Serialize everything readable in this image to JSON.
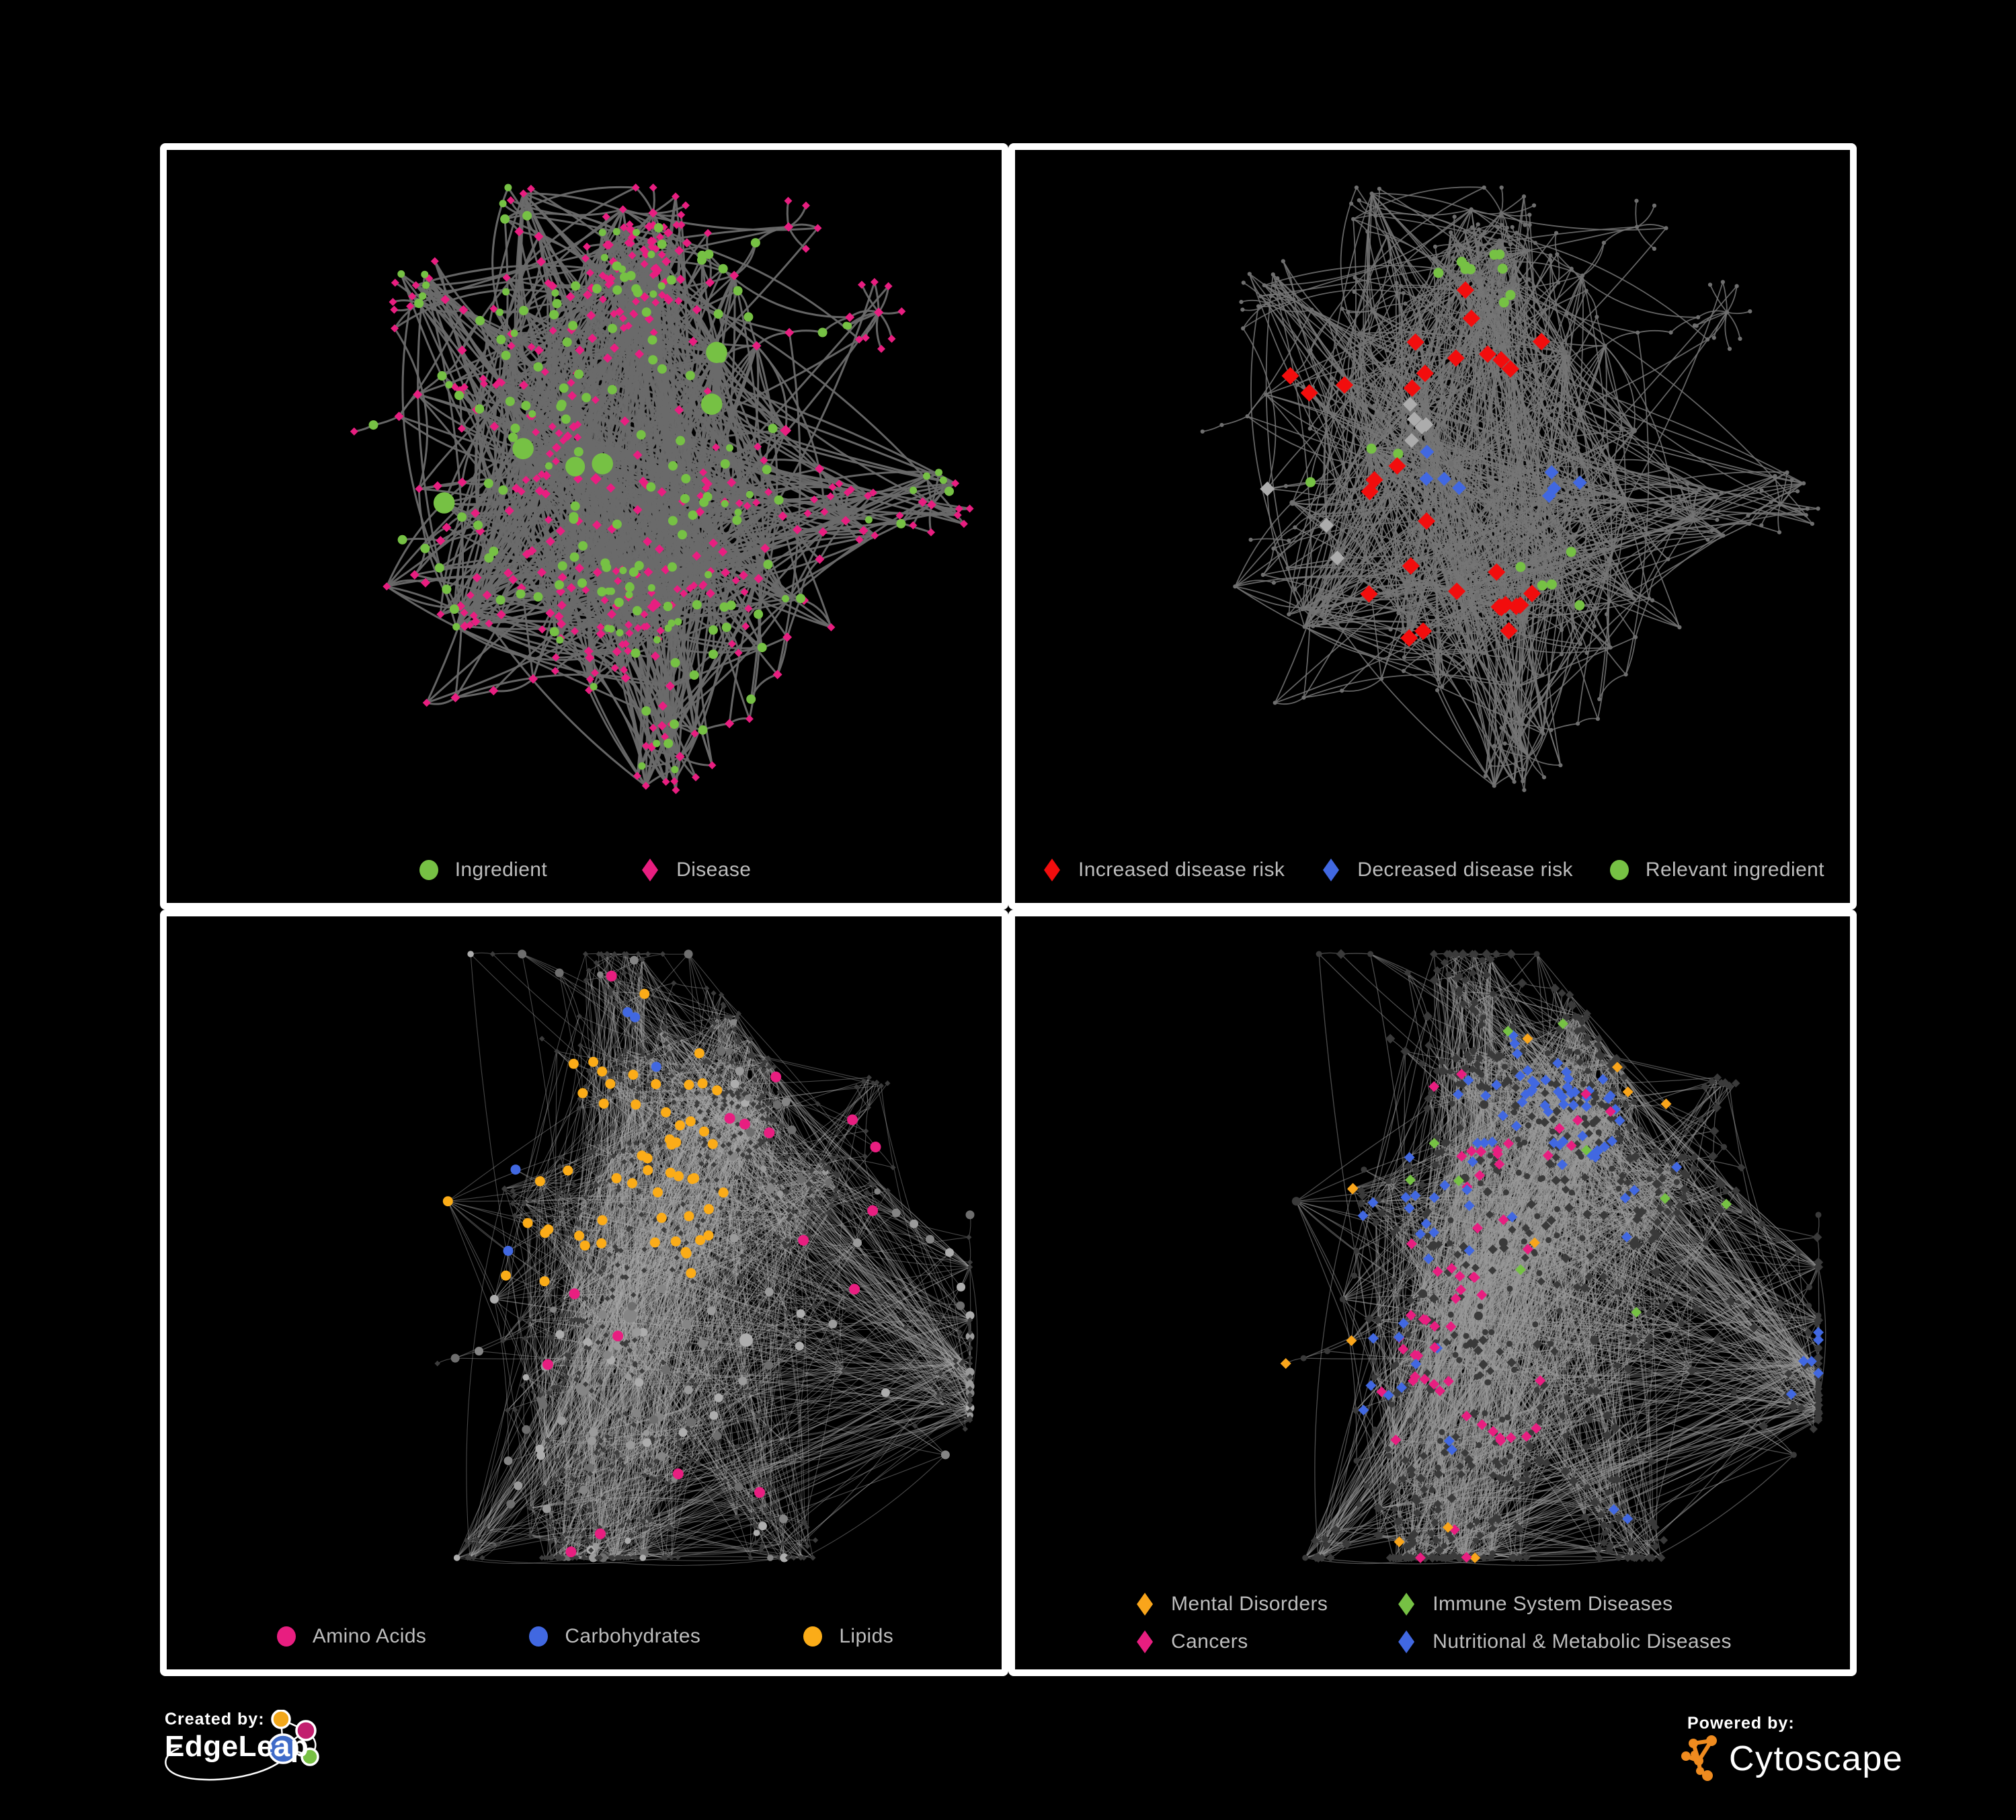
{
  "page": {
    "background": "#000000",
    "panel_border_color": "#FFFFFF",
    "legend_text_color": "#BDBDBD"
  },
  "footer": {
    "created_by_label": "Created by:",
    "created_by_name": "EdgeLeap",
    "powered_by_label": "Powered by:",
    "powered_by_name": "Cytoscape",
    "cytoscape_logo_color": "#EF8B1F",
    "edgeleap_logo_colors": {
      "orange": "#F2A71B",
      "magenta": "#C21E6E",
      "blue": "#3F6BC8",
      "green": "#77C043"
    }
  },
  "chart_data": [
    {
      "panel": "top-left",
      "type": "network",
      "description": "Ingredient-disease association network, nodes colored by type",
      "edge_color": "#6A6A6A",
      "legend_position": "bottom-center",
      "legend": [
        {
          "label": "Ingredient",
          "shape": "circle",
          "color": "#76C144"
        },
        {
          "label": "Disease",
          "shape": "diamond",
          "color": "#E81E80"
        }
      ],
      "node_classes": [
        {
          "name": "Ingredient",
          "shape": "circle",
          "color": "#76C144",
          "approx_count": 170
        },
        {
          "name": "Disease",
          "shape": "diamond",
          "color": "#E81E80",
          "approx_count": 350
        }
      ]
    },
    {
      "panel": "top-right",
      "type": "network",
      "description": "Same network with disease-risk effects highlighted",
      "edge_color": "#757575",
      "legend_position": "bottom-center",
      "legend": [
        {
          "label": "Increased disease risk",
          "shape": "diamond",
          "color": "#F20D0D"
        },
        {
          "label": "Decreased disease risk",
          "shape": "diamond",
          "color": "#4168E1"
        },
        {
          "label": "Relevant ingredient",
          "shape": "circle",
          "color": "#76C144"
        }
      ],
      "node_classes": [
        {
          "name": "Increased disease risk",
          "shape": "diamond",
          "color": "#F20D0D",
          "approx_count": 30
        },
        {
          "name": "Decreased disease risk",
          "shape": "diamond",
          "color": "#4168E1",
          "approx_count": 8
        },
        {
          "name": "Relevant ingredient",
          "shape": "circle",
          "color": "#76C144",
          "approx_count": 18
        },
        {
          "name": "Uncategorized effect",
          "shape": "diamond",
          "color": "#ACACAC",
          "approx_count": 8
        },
        {
          "name": "Other node",
          "shape": "circle",
          "color": "#6F6F6F",
          "approx_count": 480
        }
      ]
    },
    {
      "panel": "bottom-left",
      "type": "network",
      "description": "Network with ingredient nutrient groups highlighted",
      "edge_color": "#A6A6A6",
      "legend_position": "bottom-center",
      "legend": [
        {
          "label": "Amino Acids",
          "shape": "circle",
          "color": "#E81E80"
        },
        {
          "label": "Carbohydrates",
          "shape": "circle",
          "color": "#4168E1"
        },
        {
          "label": "Lipids",
          "shape": "circle",
          "color": "#FBAC18"
        }
      ],
      "node_classes": [
        {
          "name": "Amino Acids",
          "shape": "circle",
          "color": "#E81E80",
          "approx_count": 17
        },
        {
          "name": "Carbohydrates",
          "shape": "circle",
          "color": "#4168E1",
          "approx_count": 10
        },
        {
          "name": "Lipids",
          "shape": "circle",
          "color": "#FBAC18",
          "approx_count": 55
        },
        {
          "name": "Other ingredient",
          "shape": "circle",
          "color": "#8E8E8E",
          "approx_count": 160
        },
        {
          "name": "Disease",
          "shape": "diamond",
          "color": "#3C3C3C",
          "approx_count": 520
        }
      ]
    },
    {
      "panel": "bottom-right",
      "type": "network",
      "description": "Network with disease categories highlighted",
      "edge_color": "#999999",
      "legend_position": "bottom-center-two-columns",
      "legend": [
        {
          "label": "Mental Disorders",
          "shape": "diamond",
          "color": "#F9A51B"
        },
        {
          "label": "Immune System Diseases",
          "shape": "diamond",
          "color": "#76C144"
        },
        {
          "label": "Cancers",
          "shape": "diamond",
          "color": "#E81E80"
        },
        {
          "label": "Nutritional & Metabolic Diseases",
          "shape": "diamond",
          "color": "#4168E1"
        }
      ],
      "node_classes": [
        {
          "name": "Mental Disorders",
          "shape": "diamond",
          "color": "#F9A51B",
          "approx_count": 90
        },
        {
          "name": "Cancers",
          "shape": "diamond",
          "color": "#E81E80",
          "approx_count": 60
        },
        {
          "name": "Immune System Diseases",
          "shape": "diamond",
          "color": "#76C144",
          "approx_count": 10
        },
        {
          "name": "Nutritional & Metabolic Diseases",
          "shape": "diamond",
          "color": "#4168E1",
          "approx_count": 92
        },
        {
          "name": "Other node",
          "shape": "diamond",
          "color": "#3A3A3A",
          "approx_count": 560
        }
      ]
    }
  ]
}
